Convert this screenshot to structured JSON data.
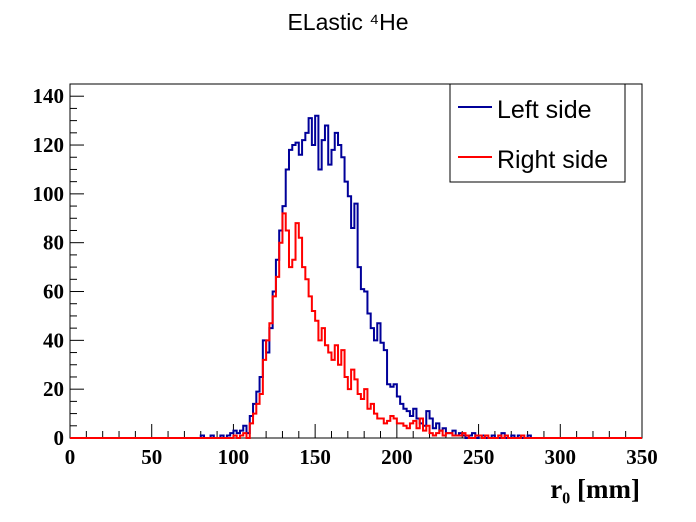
{
  "chart_data": {
    "type": "step",
    "title": "ELastic ⁴He",
    "xlabel": "r₀ [mm]",
    "ylabel": "",
    "xlim": [
      0,
      350
    ],
    "ylim": [
      0,
      145
    ],
    "x_ticks": [
      "0",
      "50",
      "100",
      "150",
      "200",
      "250",
      "300",
      "350"
    ],
    "y_ticks": [
      "0",
      "20",
      "40",
      "60",
      "80",
      "100",
      "120",
      "140"
    ],
    "grid": false,
    "legend_position": "top-right",
    "bin_width": 2,
    "x": [
      70,
      72,
      74,
      76,
      78,
      80,
      82,
      84,
      86,
      88,
      90,
      92,
      94,
      96,
      98,
      100,
      102,
      104,
      106,
      108,
      110,
      112,
      114,
      116,
      118,
      120,
      122,
      124,
      126,
      128,
      130,
      132,
      134,
      136,
      138,
      140,
      142,
      144,
      146,
      148,
      150,
      152,
      154,
      156,
      158,
      160,
      162,
      164,
      166,
      168,
      170,
      172,
      174,
      176,
      178,
      180,
      182,
      184,
      186,
      188,
      190,
      192,
      194,
      196,
      198,
      200,
      202,
      204,
      206,
      208,
      210,
      212,
      214,
      216,
      218,
      220,
      222,
      224,
      226,
      228,
      230,
      232,
      234,
      236,
      238,
      240,
      242,
      244,
      246,
      248,
      250,
      252,
      254,
      256,
      258,
      260,
      262,
      264,
      266,
      268,
      270,
      272,
      274,
      276,
      278,
      280
    ],
    "series": [
      {
        "name": "Left side",
        "color": "#000099",
        "values": [
          0,
          0,
          0,
          0,
          0,
          1,
          0,
          0,
          1,
          0,
          0,
          1,
          0,
          1,
          2,
          3,
          2,
          3,
          5,
          2,
          9,
          14,
          19,
          25,
          40,
          35,
          45,
          60,
          73,
          85,
          95,
          110,
          118,
          120,
          121,
          116,
          122,
          125,
          131,
          120,
          132,
          110,
          122,
          128,
          112,
          118,
          125,
          120,
          115,
          105,
          99,
          86,
          96,
          70,
          61,
          60,
          51,
          45,
          40,
          47,
          39,
          36,
          22,
          21,
          22,
          17,
          14,
          12,
          11,
          9,
          12,
          8,
          6,
          5,
          11,
          8,
          4,
          6,
          3,
          4,
          2,
          2,
          3,
          1,
          2,
          1,
          0,
          1,
          2,
          0,
          1,
          1,
          0,
          0,
          1,
          0,
          0,
          2,
          0,
          0,
          1,
          0,
          1,
          0,
          0,
          1
        ]
      },
      {
        "name": "Right side",
        "color": "#ff0000",
        "values": [
          0,
          0,
          0,
          0,
          0,
          0,
          0,
          0,
          0,
          0,
          0,
          0,
          0,
          0,
          0,
          1,
          0,
          1,
          2,
          0,
          6,
          10,
          14,
          18,
          32,
          40,
          47,
          58,
          66,
          80,
          92,
          85,
          70,
          73,
          88,
          82,
          70,
          65,
          58,
          52,
          48,
          40,
          45,
          38,
          35,
          32,
          38,
          30,
          36,
          25,
          20,
          28,
          24,
          18,
          16,
          20,
          12,
          14,
          10,
          8,
          8,
          6,
          7,
          9,
          8,
          6,
          6,
          5,
          4,
          6,
          7,
          4,
          8,
          3,
          5,
          2,
          1,
          2,
          3,
          1,
          2,
          2,
          1,
          1,
          1,
          2,
          1,
          0,
          0,
          1,
          1,
          0,
          1,
          0,
          0,
          0,
          1,
          0,
          1,
          0,
          0,
          0,
          0,
          1,
          0,
          0
        ]
      }
    ]
  }
}
